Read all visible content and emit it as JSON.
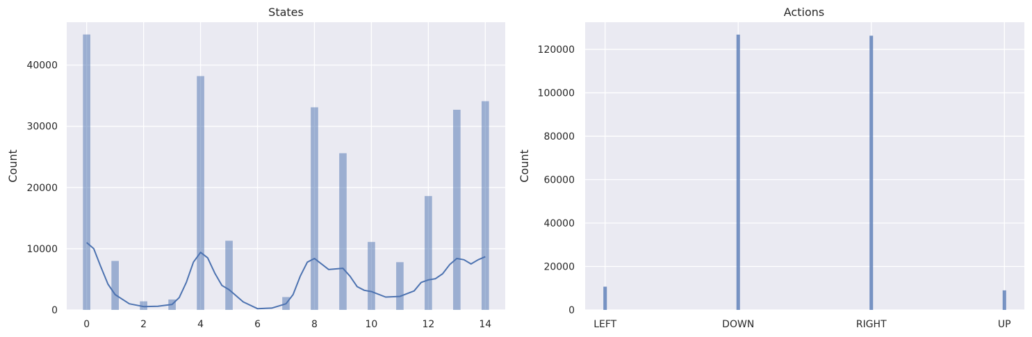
{
  "chart_data": [
    {
      "type": "bar",
      "title": "States",
      "xlabel": "",
      "ylabel": "Count",
      "xlim": [
        -0.7,
        14.7
      ],
      "ylim": [
        0,
        47000
      ],
      "xticks": [
        0,
        2,
        4,
        6,
        8,
        10,
        12,
        14
      ],
      "yticks": [
        0,
        10000,
        20000,
        30000,
        40000
      ],
      "grid": true,
      "colors": {
        "bar": "#4c72b0",
        "kde": "#4c72b0"
      },
      "bars": [
        {
          "x": 0,
          "value": 45000
        },
        {
          "x": 1,
          "value": 8000
        },
        {
          "x": 2,
          "value": 1400
        },
        {
          "x": 3,
          "value": 1700
        },
        {
          "x": 4,
          "value": 38200
        },
        {
          "x": 5,
          "value": 11300
        },
        {
          "x": 7,
          "value": 2100
        },
        {
          "x": 8,
          "value": 33100
        },
        {
          "x": 9,
          "value": 25600
        },
        {
          "x": 10,
          "value": 11100
        },
        {
          "x": 11,
          "value": 7800
        },
        {
          "x": 12,
          "value": 18600
        },
        {
          "x": 13,
          "value": 32700
        },
        {
          "x": 14,
          "value": 34100
        }
      ],
      "kde": {
        "x": [
          0,
          0.25,
          0.5,
          0.75,
          1,
          1.5,
          2,
          2.5,
          3,
          3.25,
          3.5,
          3.75,
          4,
          4.25,
          4.5,
          4.75,
          5,
          5.5,
          6,
          6.5,
          7,
          7.25,
          7.5,
          7.75,
          8,
          8.25,
          8.5,
          8.75,
          9,
          9.25,
          9.5,
          9.75,
          10,
          10.5,
          11,
          11.5,
          11.75,
          12,
          12.25,
          12.5,
          12.75,
          13,
          13.25,
          13.5,
          13.75,
          14
        ],
        "y": [
          11000,
          10000,
          7000,
          4200,
          2500,
          1000,
          550,
          600,
          900,
          2000,
          4500,
          7800,
          9400,
          8500,
          6000,
          4000,
          3300,
          1300,
          200,
          300,
          1000,
          2500,
          5500,
          7800,
          8400,
          7500,
          6600,
          6700,
          6800,
          5500,
          3800,
          3200,
          3000,
          2100,
          2200,
          3100,
          4500,
          4900,
          5100,
          5900,
          7400,
          8400,
          8200,
          7500,
          8200,
          8700
        ]
      }
    },
    {
      "type": "bar",
      "title": "Actions",
      "xlabel": "",
      "ylabel": "Count",
      "categories": [
        "LEFT",
        "DOWN",
        "RIGHT",
        "UP"
      ],
      "values": [
        10700,
        126800,
        126300,
        9000
      ],
      "ylim": [
        0,
        132500
      ],
      "yticks": [
        0,
        20000,
        40000,
        60000,
        80000,
        100000,
        120000
      ],
      "grid": true,
      "colors": {
        "bar": "#4c72b0"
      }
    }
  ]
}
